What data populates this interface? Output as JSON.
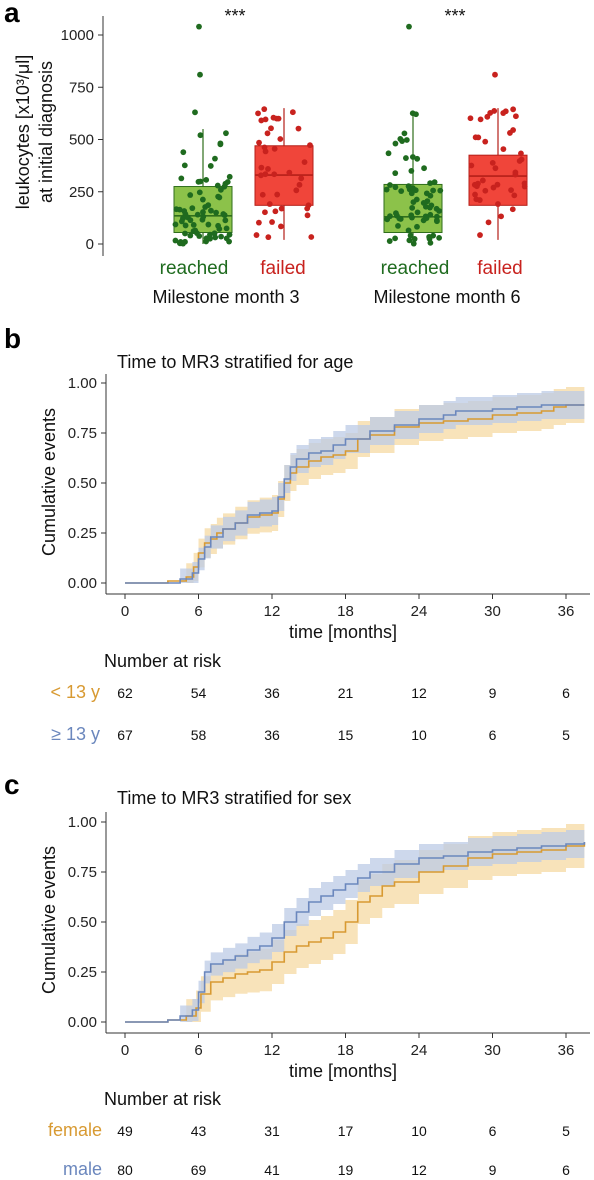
{
  "colors": {
    "reached_point": "#1f6b1f",
    "reached_box": "#8cc24a",
    "failed_point": "#c8221e",
    "failed_box": "#f0453a",
    "orange": "#d89a32",
    "orange_band": "#f5d9a3",
    "blue": "#6b87bd",
    "blue_band": "#bccbe6"
  },
  "panel_a": {
    "letter": "a",
    "ylabel_line1": "leukocytes [x10³/μl]",
    "ylabel_line2": "at initial diagnosis",
    "ytick_labels": [
      "0",
      "250",
      "500",
      "750",
      "1000"
    ],
    "significance": [
      "***",
      "***"
    ],
    "category_labels": [
      "reached",
      "failed",
      "reached",
      "failed"
    ],
    "group_labels": [
      "Milestone month 3",
      "Milestone month 6"
    ]
  },
  "panel_b": {
    "letter": "b",
    "title": "Time to MR3 stratified for age",
    "ylabel": "Cumulative events",
    "xlabel": "time [months]",
    "ytick_labels": [
      "0.00",
      "0.25",
      "0.50",
      "0.75",
      "1.00"
    ],
    "xtick_labels": [
      "0",
      "6",
      "12",
      "18",
      "24",
      "30",
      "36"
    ],
    "risk_title": "Number at risk",
    "risk_rows": [
      {
        "label": "< 13 y",
        "color": "#d89a32",
        "values": [
          "62",
          "54",
          "36",
          "21",
          "12",
          "9",
          "6"
        ]
      },
      {
        "label": "≥ 13 y",
        "color": "#6b87bd",
        "values": [
          "67",
          "58",
          "36",
          "15",
          "10",
          "6",
          "5"
        ]
      }
    ]
  },
  "panel_c": {
    "letter": "c",
    "title": "Time to MR3 stratified for sex",
    "ylabel": "Cumulative events",
    "xlabel": "time [months]",
    "ytick_labels": [
      "0.00",
      "0.25",
      "0.50",
      "0.75",
      "1.00"
    ],
    "xtick_labels": [
      "0",
      "6",
      "12",
      "18",
      "24",
      "30",
      "36"
    ],
    "risk_title": "Number at risk",
    "risk_rows": [
      {
        "label": "female",
        "color": "#d89a32",
        "values": [
          "49",
          "43",
          "31",
          "17",
          "10",
          "6",
          "5"
        ]
      },
      {
        "label": "male",
        "color": "#6b87bd",
        "values": [
          "80",
          "69",
          "41",
          "19",
          "12",
          "9",
          "6"
        ]
      }
    ]
  },
  "chart_data": [
    {
      "type": "box",
      "ylim": [
        0,
        1050
      ],
      "groups": [
        {
          "name": "reached",
          "q1": 55,
          "median": 135,
          "q3": 275,
          "whisker_low": 0,
          "whisker_high": 550,
          "outliers": [
            630,
            810,
            1040
          ]
        },
        {
          "name": "failed",
          "q1": 185,
          "median": 330,
          "q3": 470,
          "whisker_low": 20,
          "whisker_high": 650,
          "outliers": []
        },
        {
          "name": "reached",
          "q1": 55,
          "median": 130,
          "q3": 285,
          "whisker_low": 0,
          "whisker_high": 630,
          "outliers": [
            1040
          ]
        },
        {
          "name": "failed",
          "q1": 185,
          "median": 325,
          "q3": 425,
          "whisker_low": 20,
          "whisker_high": 650,
          "outliers": [
            810
          ]
        }
      ]
    },
    {
      "type": "line",
      "xlim": [
        0,
        37.5
      ],
      "ylim": [
        0,
        1
      ],
      "series": [
        {
          "name": "< 13 y",
          "steps": [
            [
              0,
              0
            ],
            [
              3.5,
              0.01
            ],
            [
              5,
              0.03
            ],
            [
              5.6,
              0.08
            ],
            [
              6,
              0.15
            ],
            [
              6.5,
              0.2
            ],
            [
              7,
              0.22
            ],
            [
              7.5,
              0.25
            ],
            [
              8,
              0.27
            ],
            [
              9,
              0.3
            ],
            [
              10,
              0.33
            ],
            [
              11,
              0.34
            ],
            [
              12,
              0.35
            ],
            [
              12.5,
              0.42
            ],
            [
              13,
              0.5
            ],
            [
              13.5,
              0.55
            ],
            [
              14,
              0.58
            ],
            [
              15,
              0.61
            ],
            [
              16,
              0.63
            ],
            [
              17,
              0.64
            ],
            [
              18,
              0.66
            ],
            [
              19,
              0.72
            ],
            [
              20,
              0.74
            ],
            [
              22,
              0.78
            ],
            [
              24,
              0.8
            ],
            [
              26,
              0.81
            ],
            [
              28,
              0.82
            ],
            [
              30,
              0.84
            ],
            [
              32,
              0.85
            ],
            [
              34,
              0.86
            ],
            [
              35,
              0.88
            ],
            [
              36,
              0.89
            ],
            [
              37.5,
              0.89
            ]
          ]
        },
        {
          "name": "≥ 13 y",
          "steps": [
            [
              0,
              0
            ],
            [
              3.5,
              0
            ],
            [
              4.5,
              0.02
            ],
            [
              5.5,
              0.05
            ],
            [
              6,
              0.12
            ],
            [
              6.5,
              0.18
            ],
            [
              7,
              0.23
            ],
            [
              8,
              0.27
            ],
            [
              9,
              0.3
            ],
            [
              10,
              0.34
            ],
            [
              11,
              0.35
            ],
            [
              12,
              0.36
            ],
            [
              12.5,
              0.43
            ],
            [
              13,
              0.52
            ],
            [
              13.5,
              0.58
            ],
            [
              14,
              0.62
            ],
            [
              15,
              0.65
            ],
            [
              16,
              0.66
            ],
            [
              17,
              0.69
            ],
            [
              18,
              0.72
            ],
            [
              20,
              0.76
            ],
            [
              22,
              0.79
            ],
            [
              24,
              0.82
            ],
            [
              26,
              0.84
            ],
            [
              27,
              0.86
            ],
            [
              30,
              0.87
            ],
            [
              32,
              0.88
            ],
            [
              34,
              0.89
            ],
            [
              37.5,
              0.89
            ]
          ]
        }
      ]
    },
    {
      "type": "line",
      "xlim": [
        0,
        37.5
      ],
      "ylim": [
        0,
        1
      ],
      "series": [
        {
          "name": "female",
          "steps": [
            [
              0,
              0
            ],
            [
              3.5,
              0.01
            ],
            [
              5,
              0.03
            ],
            [
              5.8,
              0.07
            ],
            [
              6.2,
              0.14
            ],
            [
              7,
              0.2
            ],
            [
              8,
              0.22
            ],
            [
              9,
              0.24
            ],
            [
              10,
              0.25
            ],
            [
              11,
              0.26
            ],
            [
              12,
              0.3
            ],
            [
              13,
              0.35
            ],
            [
              14,
              0.38
            ],
            [
              15,
              0.4
            ],
            [
              16,
              0.42
            ],
            [
              17,
              0.45
            ],
            [
              18,
              0.5
            ],
            [
              19,
              0.6
            ],
            [
              20,
              0.63
            ],
            [
              21,
              0.68
            ],
            [
              22,
              0.7
            ],
            [
              24,
              0.75
            ],
            [
              26,
              0.78
            ],
            [
              28,
              0.82
            ],
            [
              30,
              0.84
            ],
            [
              32,
              0.85
            ],
            [
              34,
              0.86
            ],
            [
              36,
              0.88
            ],
            [
              37.5,
              0.9
            ]
          ]
        },
        {
          "name": "male",
          "steps": [
            [
              0,
              0
            ],
            [
              3.5,
              0.01
            ],
            [
              4.5,
              0.03
            ],
            [
              5.5,
              0.06
            ],
            [
              6,
              0.15
            ],
            [
              6.5,
              0.25
            ],
            [
              7,
              0.29
            ],
            [
              8,
              0.31
            ],
            [
              9,
              0.33
            ],
            [
              10,
              0.36
            ],
            [
              11,
              0.38
            ],
            [
              12,
              0.42
            ],
            [
              13,
              0.5
            ],
            [
              14,
              0.55
            ],
            [
              15,
              0.6
            ],
            [
              16,
              0.63
            ],
            [
              17,
              0.66
            ],
            [
              18,
              0.69
            ],
            [
              19,
              0.72
            ],
            [
              20,
              0.75
            ],
            [
              22,
              0.79
            ],
            [
              24,
              0.82
            ],
            [
              26,
              0.83
            ],
            [
              28,
              0.85
            ],
            [
              30,
              0.86
            ],
            [
              32,
              0.87
            ],
            [
              34,
              0.88
            ],
            [
              36,
              0.89
            ],
            [
              37.5,
              0.9
            ]
          ]
        }
      ]
    }
  ]
}
